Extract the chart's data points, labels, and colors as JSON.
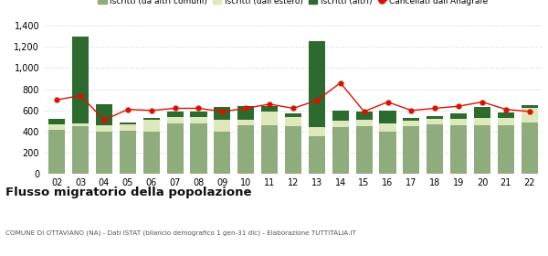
{
  "years": [
    "02",
    "03",
    "04",
    "05",
    "06",
    "07",
    "08",
    "09",
    "10",
    "11",
    "12",
    "13",
    "14",
    "15",
    "16",
    "17",
    "18",
    "19",
    "20",
    "21",
    "22"
  ],
  "iscritti_altri_comuni": [
    420,
    450,
    400,
    405,
    400,
    480,
    480,
    400,
    460,
    460,
    450,
    360,
    440,
    450,
    400,
    450,
    470,
    460,
    460,
    460,
    490
  ],
  "iscritti_estero": [
    50,
    30,
    60,
    60,
    110,
    60,
    60,
    110,
    50,
    130,
    90,
    80,
    60,
    60,
    80,
    50,
    50,
    60,
    70,
    70,
    130
  ],
  "iscritti_altri": [
    50,
    820,
    200,
    20,
    20,
    50,
    50,
    120,
    130,
    55,
    30,
    810,
    100,
    80,
    120,
    30,
    30,
    50,
    100,
    50,
    30
  ],
  "cancellati": [
    700,
    740,
    510,
    610,
    600,
    620,
    620,
    590,
    620,
    660,
    620,
    695,
    860,
    590,
    680,
    600,
    620,
    640,
    680,
    610,
    590
  ],
  "color_altri_comuni": "#8fac7c",
  "color_estero": "#dde8bb",
  "color_altri": "#2d6a2d",
  "color_cancellati": "#dd1100",
  "title": "Flusso migratorio della popolazione",
  "subtitle": "COMUNE DI OTTAVIANO (NA) - Dati ISTAT (bilancio demografico 1 gen-31 dic) - Elaborazione TUTTITALIA.IT",
  "legend_labels": [
    "Iscritti (da altri comuni)",
    "Iscritti (dall'estero)",
    "Iscritti (altri)",
    "Cancellati dall'Anagrafe"
  ],
  "ylim": [
    0,
    1400
  ],
  "yticks": [
    0,
    200,
    400,
    600,
    800,
    1000,
    1200,
    1400
  ]
}
